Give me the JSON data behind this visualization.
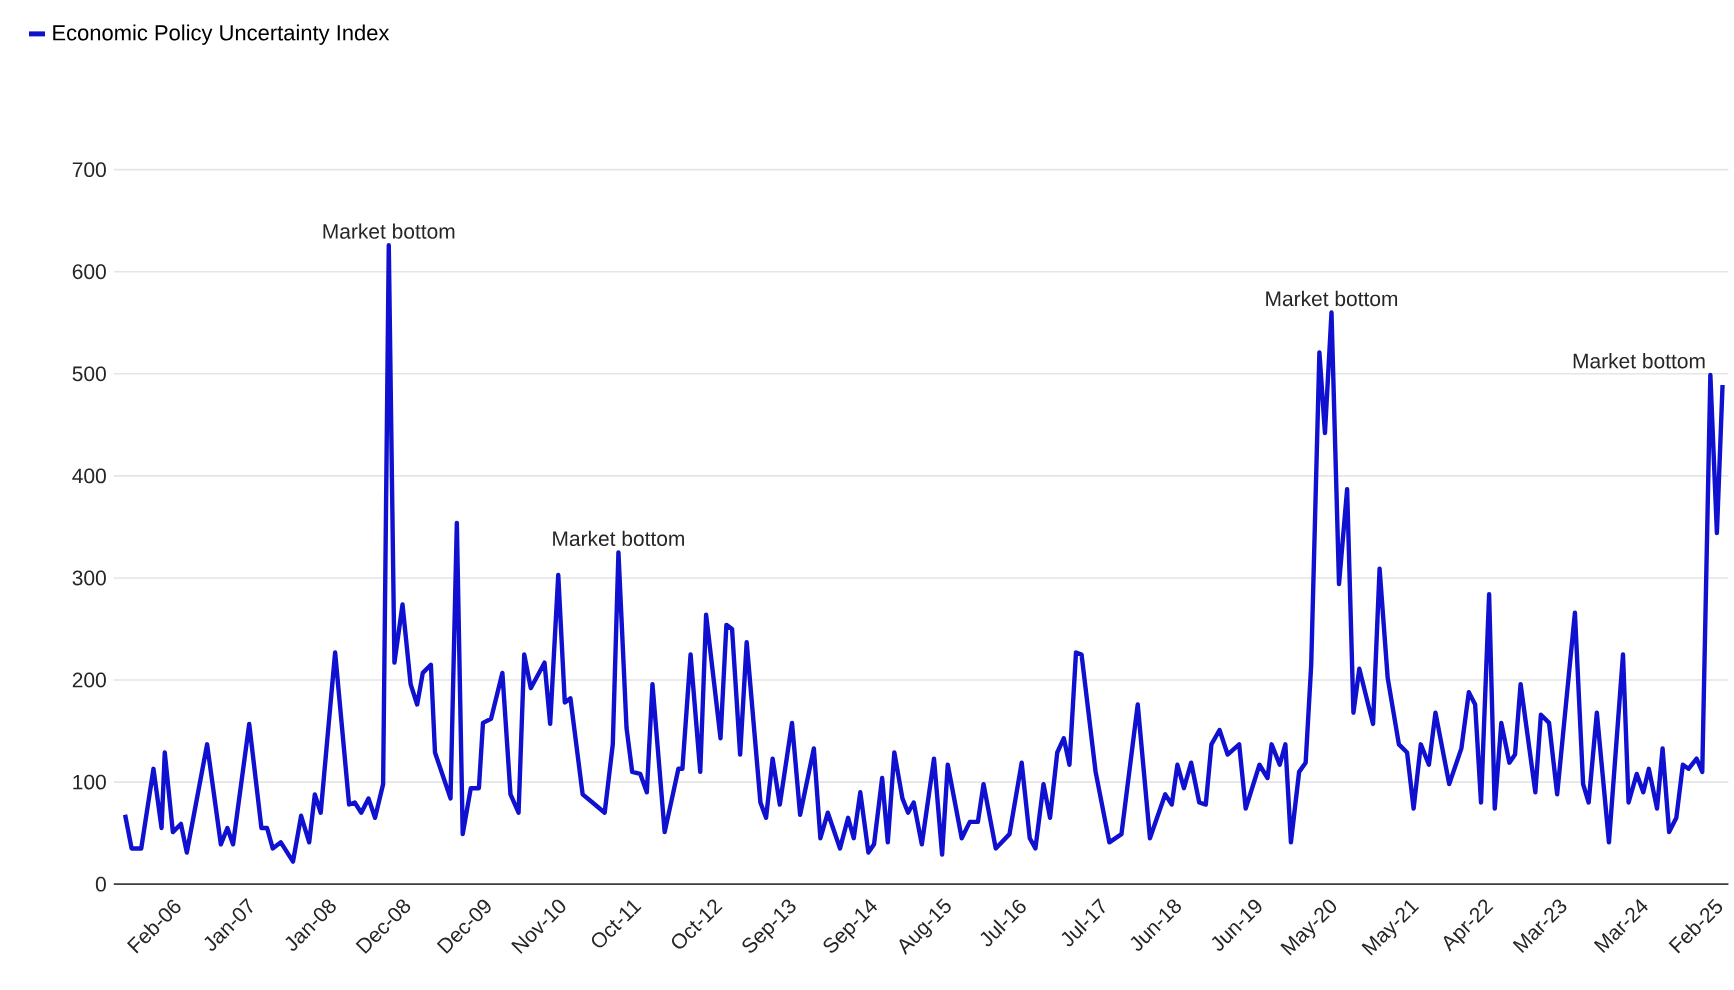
{
  "chart_data": {
    "type": "line",
    "x": [
      "2005-07-15",
      "2005-08-14",
      "2005-09-27",
      "2005-11-21",
      "2005-12-27",
      "2006-01-11",
      "2006-02-17",
      "2006-03-23",
      "2006-04-19",
      "2006-07-19",
      "2006-09-20",
      "2006-10-19",
      "2006-11-14",
      "2007-01-26",
      "2007-03-20",
      "2007-04-15",
      "2007-05-10",
      "2007-06-16",
      "2007-08-10",
      "2007-09-16",
      "2007-10-22",
      "2007-11-17",
      "2007-12-13",
      "2008-02-17",
      "2008-04-19",
      "2008-05-14",
      "2008-06-13",
      "2008-07-15",
      "2008-08-14",
      "2008-09-20",
      "2008-10-15",
      "2008-11-10",
      "2008-12-16",
      "2009-01-22",
      "2009-02-21",
      "2009-03-16",
      "2009-04-22",
      "2009-05-10",
      "2009-07-19",
      "2009-08-17",
      "2009-09-13",
      "2009-10-19",
      "2009-11-25",
      "2009-12-13",
      "2010-01-19",
      "2010-03-09",
      "2010-04-15",
      "2010-05-21",
      "2010-06-16",
      "2010-07-15",
      "2010-09-16",
      "2010-10-11",
      "2010-11-17",
      "2010-12-16",
      "2011-01-11",
      "2011-03-05",
      "2011-04-19",
      "2011-06-13",
      "2011-07-19",
      "2011-08-14",
      "2011-09-20",
      "2011-10-15",
      "2011-11-21",
      "2011-12-20",
      "2012-01-15",
      "2012-03-09",
      "2012-05-10",
      "2012-05-28",
      "2012-07-04",
      "2012-08-17",
      "2012-09-13",
      "2012-11-17",
      "2012-12-13",
      "2013-01-08",
      "2013-02-14",
      "2013-03-13",
      "2013-05-14",
      "2013-06-09",
      "2013-07-08",
      "2013-08-10",
      "2013-10-04",
      "2013-11-10",
      "2014-01-11",
      "2014-02-10",
      "2014-03-13",
      "2014-05-07",
      "2014-06-13",
      "2014-07-08",
      "2014-08-07",
      "2014-09-13",
      "2014-10-08",
      "2014-11-14",
      "2014-12-09",
      "2015-01-08",
      "2015-02-14",
      "2015-03-09",
      "2015-04-04",
      "2015-05-10",
      "2015-07-04",
      "2015-08-10",
      "2015-09-05",
      "2015-11-07",
      "2015-12-13",
      "2016-01-19",
      "2016-02-14",
      "2016-04-08",
      "2016-06-09",
      "2016-08-03",
      "2016-09-09",
      "2016-10-04",
      "2016-11-10",
      "2016-12-09",
      "2017-01-11",
      "2017-02-10",
      "2017-03-05",
      "2017-04-04",
      "2017-04-29",
      "2017-07-01",
      "2017-09-02",
      "2017-10-26",
      "2018-01-08",
      "2018-03-02",
      "2018-05-10",
      "2018-06-09",
      "2018-07-04",
      "2018-08-03",
      "2018-09-05",
      "2018-10-11",
      "2018-11-10",
      "2018-12-05",
      "2019-01-11",
      "2019-02-17",
      "2019-04-08",
      "2019-05-07",
      "2019-07-08",
      "2019-08-14",
      "2019-09-02",
      "2019-10-08",
      "2019-11-03",
      "2019-11-28",
      "2020-01-04",
      "2020-02-03",
      "2020-02-28",
      "2020-04-04",
      "2020-04-29",
      "2020-05-28",
      "2020-07-01",
      "2020-08-07",
      "2020-09-05",
      "2020-10-01",
      "2020-12-02",
      "2021-01-01",
      "2021-02-07",
      "2021-03-27",
      "2021-05-03",
      "2021-06-02",
      "2021-07-04",
      "2021-08-10",
      "2021-09-09",
      "2021-11-10",
      "2022-01-04",
      "2022-02-07",
      "2022-03-05",
      "2022-04-01",
      "2022-05-07",
      "2022-06-02",
      "2022-07-01",
      "2022-08-07",
      "2022-09-02",
      "2022-09-27",
      "2022-12-02",
      "2022-12-27",
      "2023-02-03",
      "2023-03-09",
      "2023-05-28",
      "2023-07-04",
      "2023-07-29",
      "2023-09-05",
      "2023-10-29",
      "2024-01-01",
      "2024-01-26",
      "2024-03-02",
      "2024-04-01",
      "2024-04-26",
      "2024-06-02",
      "2024-06-27",
      "2024-07-26",
      "2024-08-28",
      "2024-09-27",
      "2024-10-22",
      "2024-11-28",
      "2024-12-23",
      "2025-01-29",
      "2025-02-28",
      "2025-03-23"
    ],
    "series": [
      {
        "name": "Economic Policy Uncertainty Index",
        "color": "#1010d0",
        "values": [
          68,
          35,
          35,
          113,
          55,
          129,
          51,
          59,
          31,
          137,
          39,
          55,
          39,
          157,
          55,
          55,
          35,
          41,
          22,
          67,
          41,
          88,
          70,
          227,
          78,
          80,
          70,
          84,
          65,
          98,
          626,
          217,
          274,
          196,
          176,
          207,
          215,
          129,
          84,
          354,
          49,
          94,
          94,
          158,
          162,
          207,
          88,
          70,
          225,
          192,
          217,
          157,
          303,
          178,
          182,
          88,
          80,
          70,
          137,
          325,
          153,
          110,
          108,
          90,
          196,
          51,
          113,
          113,
          225,
          110,
          264,
          143,
          254,
          250,
          127,
          237,
          80,
          65,
          123,
          78,
          158,
          68,
          133,
          45,
          70,
          35,
          65,
          45,
          90,
          31,
          39,
          104,
          41,
          129,
          84,
          70,
          80,
          39,
          123,
          29,
          117,
          45,
          61,
          61,
          98,
          35,
          49,
          119,
          45,
          35,
          98,
          65,
          129,
          143,
          117,
          227,
          225,
          110,
          41,
          49,
          176,
          45,
          88,
          78,
          117,
          94,
          119,
          80,
          78,
          137,
          151,
          127,
          137,
          74,
          117,
          104,
          137,
          117,
          137,
          41,
          110,
          119,
          215,
          521,
          442,
          560,
          294,
          387,
          168,
          211,
          157,
          309,
          202,
          137,
          129,
          74,
          137,
          117,
          168,
          98,
          133,
          188,
          176,
          80,
          284,
          74,
          158,
          119,
          127,
          196,
          90,
          166,
          158,
          88,
          266,
          98,
          80,
          168,
          41,
          225,
          80,
          108,
          90,
          113,
          74,
          133,
          51,
          65,
          117,
          113,
          123,
          110,
          499,
          344,
          489
        ]
      }
    ],
    "xlim": [
      "2005-05-25",
      "2025-04-19"
    ],
    "xticks": [
      {
        "value": "2006-02-01",
        "label": "Feb-06"
      },
      {
        "value": "2007-01-01",
        "label": "Jan-07"
      },
      {
        "value": "2008-01-01",
        "label": "Jan-08"
      },
      {
        "value": "2008-12-01",
        "label": "Dec-08"
      },
      {
        "value": "2009-12-01",
        "label": "Dec-09"
      },
      {
        "value": "2010-11-01",
        "label": "Nov-10"
      },
      {
        "value": "2011-10-01",
        "label": "Oct-11"
      },
      {
        "value": "2012-10-01",
        "label": "Oct-12"
      },
      {
        "value": "2013-09-01",
        "label": "Sep-13"
      },
      {
        "value": "2014-09-01",
        "label": "Sep-14"
      },
      {
        "value": "2015-08-01",
        "label": "Aug-15"
      },
      {
        "value": "2016-07-01",
        "label": "Jul-16"
      },
      {
        "value": "2017-07-01",
        "label": "Jul-17"
      },
      {
        "value": "2018-06-01",
        "label": "Jun-18"
      },
      {
        "value": "2019-06-01",
        "label": "Jun-19"
      },
      {
        "value": "2020-05-01",
        "label": "May-20"
      },
      {
        "value": "2021-05-01",
        "label": "May-21"
      },
      {
        "value": "2022-04-01",
        "label": "Apr-22"
      },
      {
        "value": "2023-03-01",
        "label": "Mar-23"
      },
      {
        "value": "2024-03-01",
        "label": "Mar-24"
      },
      {
        "value": "2025-02-01",
        "label": "Feb-25"
      }
    ],
    "ylim": [
      0,
      700
    ],
    "yticks": [
      0,
      100,
      200,
      300,
      400,
      500,
      600,
      700
    ],
    "annotations": [
      {
        "text": "Market bottom",
        "x": "2008-10-15",
        "y": 626
      },
      {
        "text": "Market bottom",
        "x": "2011-08-14",
        "y": 325
      },
      {
        "text": "Market bottom",
        "x": "2020-05-28",
        "y": 560
      },
      {
        "text": "Market bottom",
        "x": "2025-01-29",
        "y": 499
      }
    ],
    "grid": "y",
    "legend": "top left",
    "marker": "none",
    "line_style": "solid"
  }
}
